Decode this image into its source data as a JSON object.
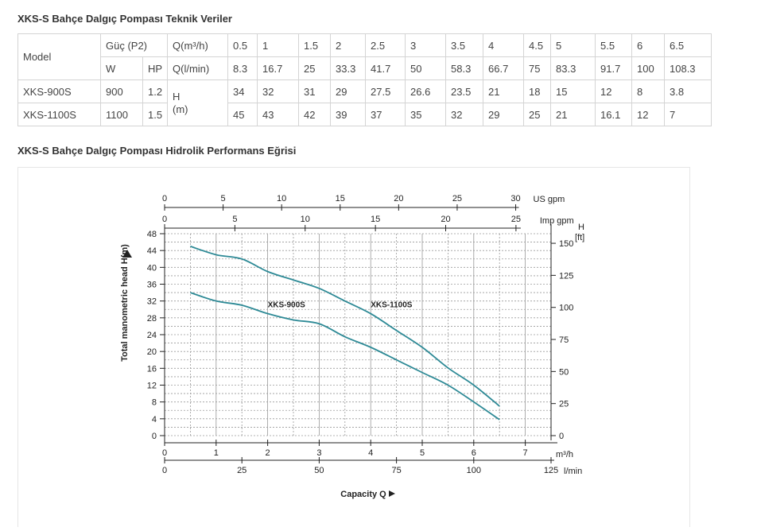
{
  "heading_table": "XKS-S Bahçe Dalgıç Pompası Teknik Veriler",
  "heading_chart": "XKS-S Bahçe Dalgıç Pompası Hidrolik Performans Eğrisi",
  "table": {
    "model_label": "Model",
    "power_label": "Güç (P2)",
    "q_m3h_label": "Q(m³/h)",
    "q_lmin_label": "Q(l/min)",
    "w_label": "W",
    "hp_label": "HP",
    "h_label": "H",
    "m_label": "(m)",
    "q_m3h": [
      "0.5",
      "1",
      "1.5",
      "2",
      "2.5",
      "3",
      "3.5",
      "4",
      "4.5",
      "5",
      "5.5",
      "6",
      "6.5"
    ],
    "q_lmin": [
      "8.3",
      "16.7",
      "25",
      "33.3",
      "41.7",
      "50",
      "58.3",
      "66.7",
      "75",
      "83.3",
      "91.7",
      "100",
      "108.3"
    ],
    "rows": [
      {
        "model": "XKS-900S",
        "w": "900",
        "hp": "1.2",
        "h": [
          "34",
          "32",
          "31",
          "29",
          "27.5",
          "26.6",
          "23.5",
          "21",
          "18",
          "15",
          "12",
          "8",
          "3.8"
        ]
      },
      {
        "model": "XKS-1100S",
        "w": "1100",
        "hp": "1.5",
        "h": [
          "45",
          "43",
          "42",
          "39",
          "37",
          "35",
          "32",
          "29",
          "25",
          "21",
          "16.1",
          "12",
          "7"
        ]
      }
    ]
  },
  "chart_data": {
    "type": "line",
    "ylabel": "Total manometric head H(m)",
    "y_ticks": [
      0,
      4,
      8,
      12,
      16,
      20,
      24,
      28,
      32,
      36,
      40,
      44,
      48
    ],
    "y_range": [
      0,
      48
    ],
    "right_axis": {
      "label": "H",
      "unit": "[ft]",
      "ticks": [
        0,
        25,
        50,
        75,
        100,
        125,
        150
      ]
    },
    "x_m3h": {
      "unit": "m³/h",
      "ticks": [
        0,
        1,
        2,
        3,
        4,
        5,
        6,
        7
      ],
      "range": [
        0,
        7.5
      ]
    },
    "x_lmin": {
      "unit": "l/min",
      "ticks": [
        0,
        25,
        50,
        75,
        100,
        125
      ]
    },
    "top_us": {
      "unit": "US gpm",
      "ticks": [
        0,
        5,
        10,
        15,
        20,
        25,
        30
      ]
    },
    "top_imp": {
      "unit": "Imp gpm",
      "ticks": [
        0,
        5,
        10,
        15,
        20,
        25
      ]
    },
    "xlabel": "Capacity Q",
    "grid": true,
    "series": [
      {
        "name": "XKS-900S",
        "color": "#2e8a96",
        "x": [
          0.5,
          1,
          1.5,
          2,
          2.5,
          3,
          3.5,
          4,
          4.5,
          5,
          5.5,
          6,
          6.5
        ],
        "y": [
          34,
          32,
          31,
          29,
          27.5,
          26.6,
          23.5,
          21,
          18,
          15,
          12,
          8,
          3.8
        ]
      },
      {
        "name": "XKS-1100S",
        "color": "#2e8a96",
        "x": [
          0.5,
          1,
          1.5,
          2,
          2.5,
          3,
          3.5,
          4,
          4.5,
          5,
          5.5,
          6,
          6.5
        ],
        "y": [
          45,
          43,
          42,
          39,
          37,
          35,
          32,
          29,
          25,
          21,
          16.1,
          12,
          7
        ]
      }
    ]
  }
}
